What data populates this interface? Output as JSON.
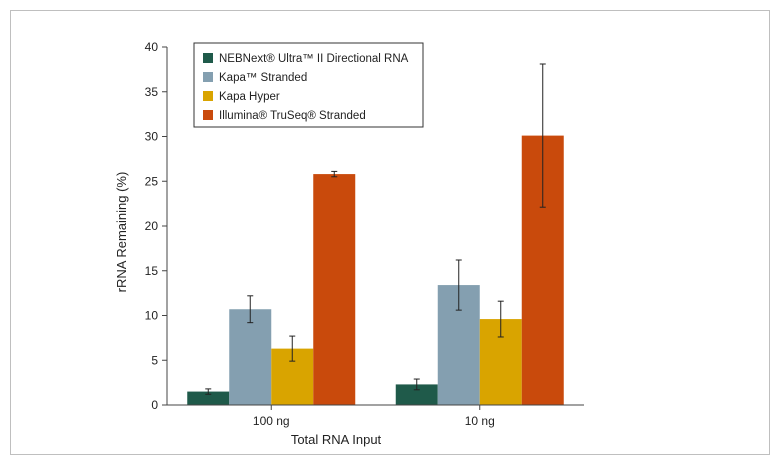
{
  "chart_data": {
    "type": "bar",
    "title": "",
    "xlabel": "Total RNA Input",
    "ylabel": "rRNA Remaining (%)",
    "categories": [
      "100 ng",
      "10 ng"
    ],
    "ylim": [
      0,
      40
    ],
    "yticks": [
      0,
      5,
      10,
      15,
      20,
      25,
      30,
      35,
      40
    ],
    "grid": false,
    "legend_position": "top-left",
    "series": [
      {
        "name": "NEBNext® Ultra™ II Directional RNA",
        "color": "#1f5a4a",
        "values": [
          1.5,
          2.3
        ],
        "error": [
          0.3,
          0.6
        ]
      },
      {
        "name": "Kapa™ Stranded",
        "color": "#849fb0",
        "values": [
          10.7,
          13.4
        ],
        "error": [
          1.5,
          2.8
        ]
      },
      {
        "name": "Kapa Hyper",
        "color": "#d9a400",
        "values": [
          6.3,
          9.6
        ],
        "error": [
          1.4,
          2.0
        ]
      },
      {
        "name": "Illumina® TruSeq® Stranded",
        "color": "#c94a0c",
        "values": [
          25.8,
          30.1
        ],
        "error": [
          0.3,
          8.0
        ]
      }
    ]
  }
}
